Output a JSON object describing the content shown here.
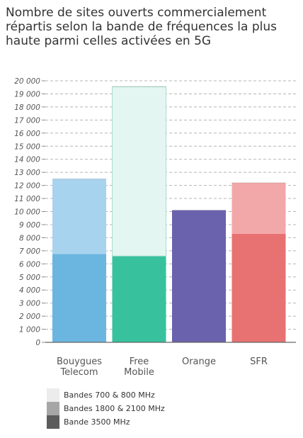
{
  "title": "Nombre de sites ouverts commercialement répartis selon la bande de fréquences la plus haute parmi celles activées en 5G",
  "chart_data": {
    "type": "bar",
    "stacked": true,
    "categories": [
      "Bouygues\nTelecom",
      "Free\nMobile",
      "Orange",
      "SFR"
    ],
    "series": [
      {
        "name": "Bandes 700 & 800 MHz",
        "values": [
          0,
          12950,
          0,
          0
        ]
      },
      {
        "name": "Bandes 1800 & 2100 MHz",
        "values": [
          5750,
          0,
          0,
          3900
        ]
      },
      {
        "name": "Bande 3500 MHz",
        "values": [
          6750,
          6600,
          10100,
          8300
        ]
      }
    ],
    "ylim": [
      0,
      20000
    ],
    "yticks": [
      "0",
      "1 000",
      "2 000",
      "3 000",
      "4 000",
      "5 000",
      "6 000",
      "7 000",
      "8 000",
      "9 000",
      "10 000",
      "11 000",
      "12 000",
      "13 000",
      "14 000",
      "15 000",
      "16 000",
      "17 000",
      "18 000",
      "19 000",
      "20 000"
    ],
    "grid": true,
    "legend_position": "bottom-left",
    "colors": {
      "bouygues_telecom": {
        "Bande 3500 MHz": "#6bb6e0",
        "Bandes 1800 & 2100 MHz": "#a8d3ee",
        "Bandes 700 & 800 MHz": "#e4f6f1"
      },
      "free_mobile": {
        "Bande 3500 MHz": "#37c19c",
        "Bandes 1800 & 2100 MHz": "#9fe0cd",
        "Bandes 700 & 800 MHz": "#e4f6f1"
      },
      "orange": {
        "Bande 3500 MHz": "#6a62ad",
        "Bandes 1800 & 2100 MHz": "#a9a3d6",
        "Bandes 700 & 800 MHz": "#e9e7f5"
      },
      "sfr": {
        "Bande 3500 MHz": "#e87172",
        "Bandes 1800 & 2100 MHz": "#f2a7a8",
        "Bandes 700 & 800 MHz": "#fbe3e3"
      },
      "legend": {
        "Bandes 700 & 800 MHz": "#ececec",
        "Bandes 1800 & 2100 MHz": "#a6a6a6",
        "Bande 3500 MHz": "#5c5c5c"
      }
    }
  }
}
